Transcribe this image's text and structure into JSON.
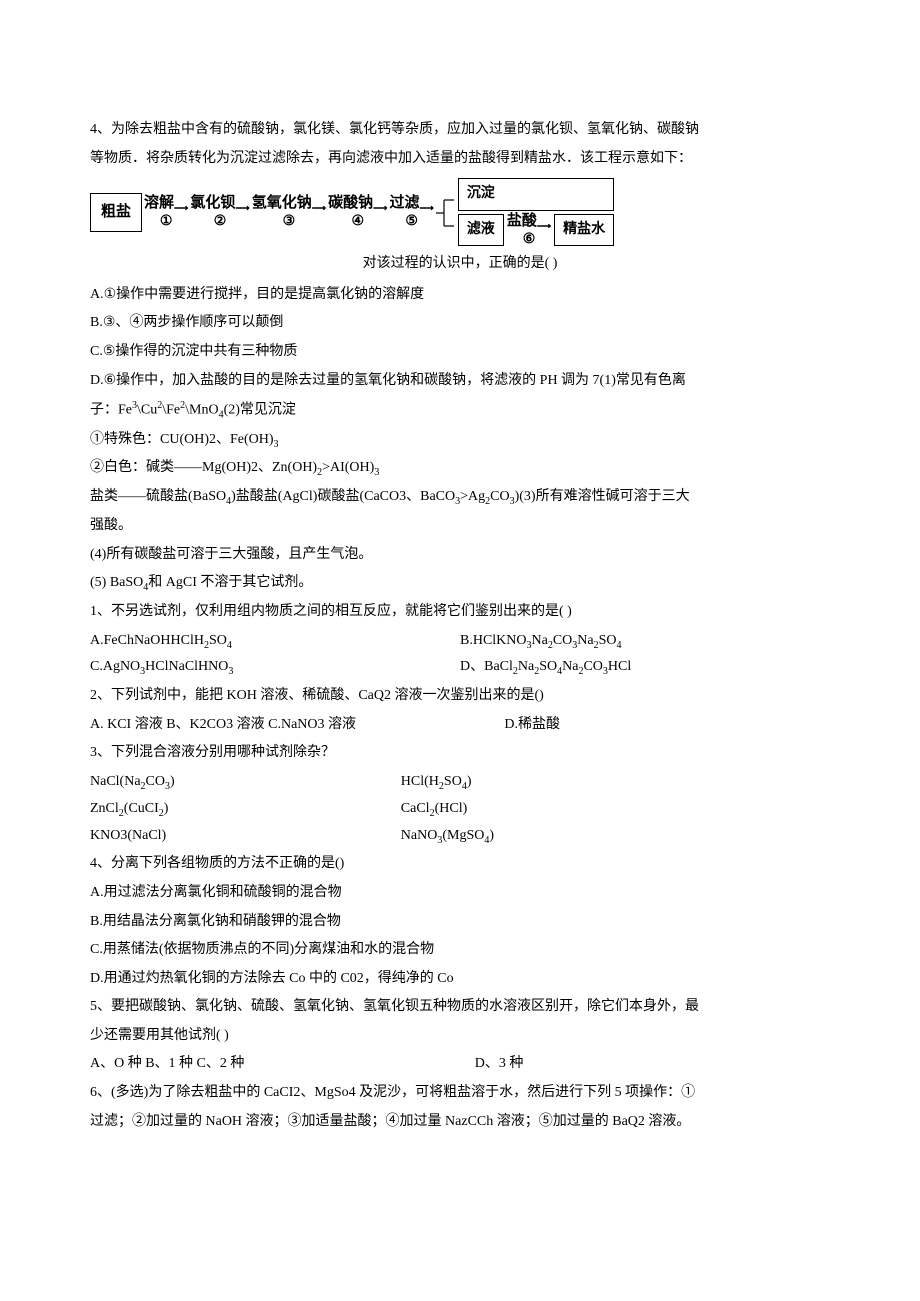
{
  "q4_intro_l1": "4、为除去粗盐中含有的硫酸钠，氯化镁、氯化钙等杂质，应加入过量的氯化钡、氢氧化钠、碳酸钠",
  "q4_intro_l2": "等物质．将杂质转化为沉淀过滤除去，再向滤液中加入适量的盐酸得到精盐水．该工程示意如下：",
  "diagram": {
    "start": "粗盐",
    "s1_top": "溶解",
    "s1_bot": "①",
    "s2_top": "氯化钡",
    "s2_bot": "②",
    "s3_top": "氢氧化钠",
    "s3_bot": "③",
    "s4_top": "碳酸钠",
    "s4_bot": "④",
    "s5_top": "过滤",
    "s5_bot": "⑤",
    "top_box": "沉淀",
    "bot_box": "滤液",
    "s6_top": "盐酸",
    "s6_bot": "⑥",
    "end": "精盐水",
    "arrow_w": 40
  },
  "q4_prompt": "对该过程的认识中，正确的是(          )",
  "q4_A": "A.①操作中需要进行搅拌，目的是提高氯化钠的溶解度",
  "q4_B": "B.③、④两步操作顺序可以颠倒",
  "q4_C": "C.⑤操作得的沉淀中共有三种物质",
  "q4_D_l1": "D.⑥操作中，加入盐酸的目的是除去过量的氢氧化钠和碳酸钠，将滤液的 PH 调为 7(1)常见有色离",
  "q4_D_l2_html": "子：Fe<sup>3</sup>\\Cu<sup>2</sup>\\Fe<sup>2</sup>\\MnO<sub>4</sub>(2)常见沉淀",
  "note1_html": "①特殊色：CU(OH)2、Fe(OH)<sub>3</sub>",
  "note2_html": "②白色：碱类——Mg(OH)2、Zn(OH)<sub>2</sub>>AI(OH)<sub>3</sub>",
  "note3_html": "盐类——硫酸盐(BaSO<sub>4</sub>)盐酸盐(AgCl)碳酸盐(CaCO3、BaCO<sub>3</sub>>Ag<sub>2</sub>CO<sub>3</sub>)(3)所有难溶性碱可溶于三大",
  "note3b": "强酸。",
  "note4": "(4)所有碳酸盐可溶于三大强酸，且产生气泡。",
  "note5_html": "(5)   BaSO<sub>4</sub>和 AgCI 不溶于其它试剂。",
  "q1_text": "1、不另选试剂，仅利用组内物质之间的相互反应，就能将它们鉴别出来的是(             )",
  "q1_A_html": "A.FeChNaOHHClH<sub>2</sub>SO<sub>4</sub>",
  "q1_B_html": "B.HClKNO<sub>3</sub>Na<sub>2</sub>CO<sub>3</sub>Na<sub>2</sub>SO<sub>4</sub>",
  "q1_C_html": "C.AgNO<sub>3</sub>HClNaClHNO<sub>3</sub>",
  "q1_D_html": "D、BaCl<sub>2</sub>Na<sub>2</sub>SO<sub>4</sub>Na<sub>2</sub>CO<sub>3</sub>HCl",
  "q2_text": "2、下列试剂中，能把 KOH 溶液、稀硫酸、CaQ2 溶液一次鉴别出来的是()",
  "q2_opts": "A.   KCI 溶液 B、K2CO3 溶液 C.NaNO3 溶液",
  "q2_D": "D.稀盐酸",
  "q3_text": "3、下列混合溶液分别用哪种试剂除杂？",
  "q3_r1c1_html": "NaCl(Na<sub>2</sub>CO<sub>3</sub>)",
  "q3_r1c2_html": "HCl(H<sub>2</sub>SO<sub>4</sub>)",
  "q3_r2c1_html": "ZnCl<sub>2</sub>(CuCI<sub>2</sub>)",
  "q3_r2c2_html": "CaCl<sub>2</sub>(HCl)",
  "q3_r3c1": "KNO3(NaCl)",
  "q3_r3c2_html": "NaNO<sub>3</sub>(MgSO<sub>4</sub>)",
  "q4b_text": "4、分离下列各组物质的方法不正确的是()",
  "q4b_A": "A.用过滤法分离氯化铜和硫酸铜的混合物",
  "q4b_B": "B.用结晶法分离氯化钠和硝酸钾的混合物",
  "q4b_C": "C.用蒸储法(依据物质沸点的不同)分离煤油和水的混合物",
  "q4b_D": "D.用通过灼热氧化铜的方法除去 Co 中的 C02，得纯净的 Co",
  "q5_l1": "5、要把碳酸钠、氯化钠、硫酸、氢氧化钠、氢氧化钡五种物质的水溶液区别开，除它们本身外，最",
  "q5_l2": "少还需要用其他试剂(                  )",
  "q5_opts_l": "A、O 种             B、1 种 C、2 种",
  "q5_opts_r": "D、3 种",
  "q6_l1": "6、(多选)为了除去粗盐中的 CaCI2、MgSo4 及泥沙，可将粗盐溶于水，然后进行下列 5 项操作：①",
  "q6_l2": "过滤；②加过量的 NaOH 溶液；③加适量盐酸；④加过量 NazCCh 溶液；⑤加过量的 BaQ2 溶液。"
}
